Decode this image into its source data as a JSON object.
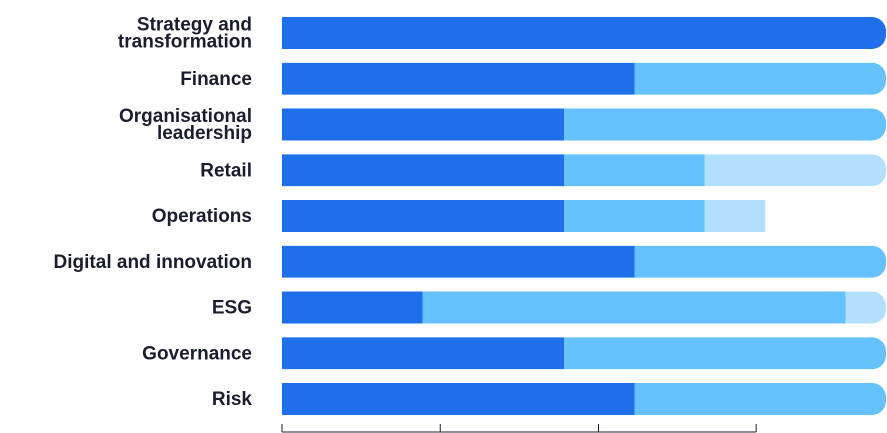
{
  "chart_data": {
    "type": "bar",
    "orientation": "horizontal",
    "stacked": true,
    "categories": [
      [
        "Strategy and",
        "transformation"
      ],
      [
        "Finance"
      ],
      [
        "Organisational",
        "leadership"
      ],
      [
        "Retail"
      ],
      [
        "Operations"
      ],
      [
        "Digital and innovation"
      ],
      [
        "ESG"
      ],
      [
        "Governance"
      ],
      [
        "Risk"
      ]
    ],
    "series": [
      {
        "color": "#1f6feb",
        "values": [
          100,
          58.4,
          46.7,
          46.7,
          46.7,
          58.4,
          23.3,
          46.7,
          58.4
        ]
      },
      {
        "color": "#66c2ff",
        "values": [
          0,
          41.6,
          53.3,
          23.3,
          23.3,
          41.6,
          70.0,
          53.3,
          41.6
        ]
      },
      {
        "color": "#b3e0fe",
        "values": [
          0,
          0,
          0,
          30.0,
          10.0,
          0,
          6.7,
          0,
          0
        ]
      }
    ],
    "xlim": [
      0,
      100
    ],
    "xticks": [
      0,
      26.2,
      52.4,
      78.5
    ],
    "title": "",
    "xlabel": "",
    "ylabel": "",
    "legend": "none",
    "grid": false
  }
}
